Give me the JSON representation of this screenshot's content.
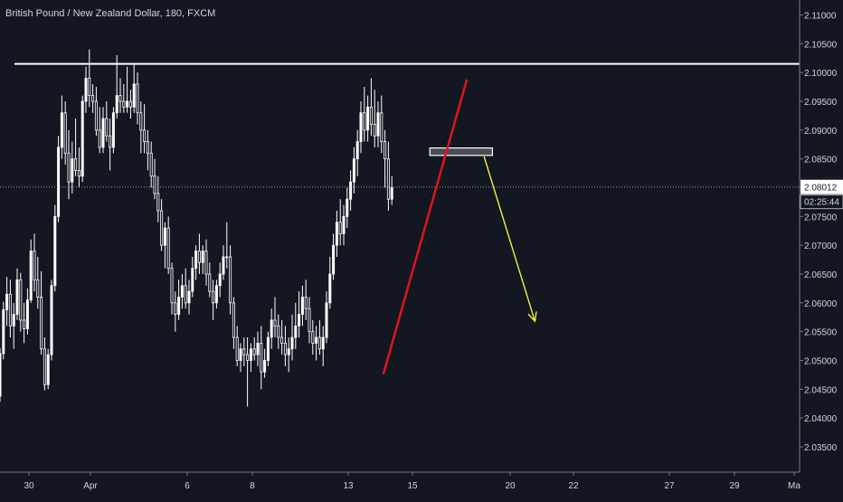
{
  "header": {
    "title": "British Pound / New Zealand Dollar, 180, FXCM"
  },
  "colors": {
    "background": "#131722",
    "candle_up": "#ffffff",
    "candle_down": "#ffffff",
    "resistance": "#ffffff",
    "trendline": "#e0131f",
    "projection_arrow": "#f2f03c",
    "price_line": "#9a9ea8",
    "price_badge_bg": "#ffffff",
    "price_badge_text": "#131722"
  },
  "chart_data": {
    "type": "candlestick",
    "title": "British Pound / New Zealand Dollar, 180, FXCM",
    "ylim": [
      2.032,
      2.1135
    ],
    "x_tick_labels": [
      "30",
      "Apr",
      "6",
      "8",
      "13",
      "15",
      "20",
      "22",
      "27",
      "29",
      "Ma"
    ],
    "y_tick_labels": [
      "2.11000",
      "2.10500",
      "2.10000",
      "2.09500",
      "2.09000",
      "2.08500",
      "2.08000",
      "2.07500",
      "2.07000",
      "2.06500",
      "2.06000",
      "2.05500",
      "2.05000",
      "2.04500",
      "2.04000",
      "2.03500"
    ],
    "y_tick_values": [
      2.11,
      2.105,
      2.1,
      2.095,
      2.09,
      2.085,
      2.08,
      2.075,
      2.07,
      2.065,
      2.06,
      2.055,
      2.05,
      2.045,
      2.04,
      2.035
    ],
    "current_price": {
      "value": 2.08012,
      "label": "2.08012",
      "countdown": "02:25:44"
    },
    "resistance_level": 2.1015,
    "support_zone": {
      "top": 2.0869,
      "bottom": 2.0856
    },
    "trendline": {
      "from": {
        "bar": 106,
        "price": 2.0476
      },
      "to": {
        "bar": 129,
        "price": 2.0988
      }
    },
    "projection_arrow": {
      "from": {
        "bar": 134,
        "price": 2.0854
      },
      "to": {
        "bar": 148,
        "price": 2.0568
      }
    },
    "candles": [
      [
        2.0438,
        2.0522,
        2.0428,
        2.0512
      ],
      [
        2.0512,
        2.0602,
        2.0502,
        2.0588
      ],
      [
        2.0588,
        2.0645,
        2.056,
        2.0615
      ],
      [
        2.0615,
        2.064,
        2.054,
        2.056
      ],
      [
        2.056,
        2.06,
        2.052,
        2.058
      ],
      [
        2.058,
        2.066,
        2.057,
        2.064
      ],
      [
        2.064,
        2.0652,
        2.055,
        2.057
      ],
      [
        2.057,
        2.06,
        2.053,
        2.0555
      ],
      [
        2.0555,
        2.0625,
        2.0545,
        2.0605
      ],
      [
        2.0605,
        2.071,
        2.06,
        2.069
      ],
      [
        2.069,
        2.072,
        2.062,
        2.064
      ],
      [
        2.064,
        2.068,
        2.059,
        2.061
      ],
      [
        2.061,
        2.0655,
        2.051,
        2.052
      ],
      [
        2.052,
        2.054,
        2.0448,
        2.0458
      ],
      [
        2.0458,
        2.052,
        2.045,
        2.051
      ],
      [
        2.051,
        2.064,
        2.05,
        2.063
      ],
      [
        2.063,
        2.077,
        2.062,
        2.075
      ],
      [
        2.075,
        2.089,
        2.074,
        2.087
      ],
      [
        2.087,
        2.096,
        2.085,
        2.093
      ],
      [
        2.093,
        2.095,
        2.084,
        2.086
      ],
      [
        2.086,
        2.09,
        2.078,
        2.081
      ],
      [
        2.081,
        2.088,
        2.079,
        2.085
      ],
      [
        2.085,
        2.092,
        2.082,
        2.083
      ],
      [
        2.083,
        2.087,
        2.08,
        2.082
      ],
      [
        2.082,
        2.096,
        2.081,
        2.095
      ],
      [
        2.095,
        2.101,
        2.093,
        2.099
      ],
      [
        2.099,
        2.104,
        2.094,
        2.096
      ],
      [
        2.096,
        2.098,
        2.093,
        2.095
      ],
      [
        2.095,
        2.0975,
        2.089,
        2.09
      ],
      [
        2.09,
        2.094,
        2.086,
        2.087
      ],
      [
        2.087,
        2.094,
        2.086,
        2.092
      ],
      [
        2.092,
        2.095,
        2.088,
        2.089
      ],
      [
        2.089,
        2.092,
        2.083,
        2.087
      ],
      [
        2.087,
        2.094,
        2.086,
        2.093
      ],
      [
        2.093,
        2.103,
        2.092,
        2.096
      ],
      [
        2.096,
        2.099,
        2.093,
        2.095
      ],
      [
        2.095,
        2.098,
        2.093,
        2.094
      ],
      [
        2.094,
        2.101,
        2.093,
        2.095
      ],
      [
        2.095,
        2.097,
        2.092,
        2.094
      ],
      [
        2.094,
        2.1015,
        2.093,
        2.098
      ],
      [
        2.098,
        2.1,
        2.091,
        2.093
      ],
      [
        2.093,
        2.095,
        2.086,
        2.09
      ],
      [
        2.09,
        2.0945,
        2.086,
        2.088
      ],
      [
        2.088,
        2.09,
        2.083,
        2.086
      ],
      [
        2.086,
        2.088,
        2.08,
        2.082
      ],
      [
        2.082,
        2.085,
        2.078,
        2.079
      ],
      [
        2.079,
        2.082,
        2.074,
        2.076
      ],
      [
        2.076,
        2.078,
        2.069,
        2.07
      ],
      [
        2.07,
        2.074,
        2.066,
        2.073
      ],
      [
        2.073,
        2.075,
        2.065,
        2.066
      ],
      [
        2.066,
        2.067,
        2.058,
        2.06
      ],
      [
        2.06,
        2.062,
        2.055,
        2.058
      ],
      [
        2.058,
        2.064,
        2.057,
        2.061
      ],
      [
        2.061,
        2.065,
        2.059,
        2.063
      ],
      [
        2.063,
        2.066,
        2.059,
        2.06
      ],
      [
        2.06,
        2.064,
        2.058,
        2.062
      ],
      [
        2.062,
        2.068,
        2.061,
        2.066
      ],
      [
        2.066,
        2.07,
        2.064,
        2.069
      ],
      [
        2.069,
        2.072,
        2.065,
        2.067
      ],
      [
        2.067,
        2.07,
        2.065,
        2.069
      ],
      [
        2.069,
        2.071,
        2.063,
        2.065
      ],
      [
        2.065,
        2.067,
        2.061,
        2.062
      ],
      [
        2.062,
        2.064,
        2.057,
        2.06
      ],
      [
        2.06,
        2.064,
        2.059,
        2.063
      ],
      [
        2.063,
        2.067,
        2.061,
        2.065
      ],
      [
        2.065,
        2.07,
        2.064,
        2.068
      ],
      [
        2.068,
        2.074,
        2.066,
        2.068
      ],
      [
        2.068,
        2.07,
        2.058,
        2.06
      ],
      [
        2.06,
        2.061,
        2.052,
        2.054
      ],
      [
        2.054,
        2.056,
        2.049,
        2.05
      ],
      [
        2.05,
        2.053,
        2.048,
        2.052
      ],
      [
        2.052,
        2.054,
        2.049,
        2.051
      ],
      [
        2.051,
        2.054,
        2.042,
        2.05
      ],
      [
        2.05,
        2.053,
        2.048,
        2.052
      ],
      [
        2.052,
        2.054,
        2.05,
        2.051
      ],
      [
        2.051,
        2.055,
        2.049,
        2.053
      ],
      [
        2.053,
        2.056,
        2.045,
        2.048
      ],
      [
        2.048,
        2.052,
        2.047,
        2.05
      ],
      [
        2.05,
        2.055,
        2.049,
        2.054
      ],
      [
        2.054,
        2.059,
        2.052,
        2.057
      ],
      [
        2.057,
        2.061,
        2.054,
        2.056
      ],
      [
        2.056,
        2.058,
        2.052,
        2.054
      ],
      [
        2.054,
        2.057,
        2.051,
        2.053
      ],
      [
        2.053,
        2.056,
        2.049,
        2.051
      ],
      [
        2.051,
        2.054,
        2.048,
        2.052
      ],
      [
        2.052,
        2.058,
        2.05,
        2.054
      ],
      [
        2.054,
        2.06,
        2.052,
        2.056
      ],
      [
        2.056,
        2.062,
        2.054,
        2.058
      ],
      [
        2.058,
        2.063,
        2.056,
        2.061
      ],
      [
        2.061,
        2.064,
        2.057,
        2.059
      ],
      [
        2.059,
        2.061,
        2.053,
        2.055
      ],
      [
        2.055,
        2.057,
        2.051,
        2.053
      ],
      [
        2.053,
        2.056,
        2.05,
        2.054
      ],
      [
        2.054,
        2.057,
        2.051,
        2.052
      ],
      [
        2.052,
        2.056,
        2.049,
        2.054
      ],
      [
        2.054,
        2.062,
        2.053,
        2.06
      ],
      [
        2.06,
        2.068,
        2.059,
        2.065
      ],
      [
        2.065,
        2.072,
        2.064,
        2.07
      ],
      [
        2.07,
        2.076,
        2.068,
        2.074
      ],
      [
        2.074,
        2.078,
        2.07,
        2.072
      ],
      [
        2.072,
        2.077,
        2.07,
        2.075
      ],
      [
        2.075,
        2.08,
        2.073,
        2.078
      ],
      [
        2.078,
        2.083,
        2.076,
        2.081
      ],
      [
        2.081,
        2.087,
        2.079,
        2.085
      ],
      [
        2.085,
        2.09,
        2.082,
        2.088
      ],
      [
        2.088,
        2.095,
        2.086,
        2.093
      ],
      [
        2.093,
        2.0975,
        2.088,
        2.09
      ],
      [
        2.09,
        2.096,
        2.088,
        2.094
      ],
      [
        2.094,
        2.099,
        2.089,
        2.091
      ],
      [
        2.091,
        2.097,
        2.087,
        2.089
      ],
      [
        2.089,
        2.095,
        2.087,
        2.093
      ],
      [
        2.093,
        2.096,
        2.086,
        2.088
      ],
      [
        2.088,
        2.09,
        2.08,
        2.085
      ],
      [
        2.085,
        2.088,
        2.076,
        2.078
      ],
      [
        2.078,
        2.082,
        2.077,
        2.08
      ]
    ]
  }
}
